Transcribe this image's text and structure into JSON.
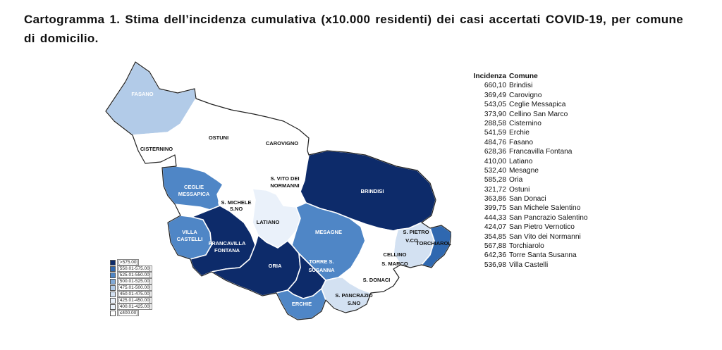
{
  "title": "Cartogramma 1. Stima dell’incidenza cumulativa (x10.000 residenti) dei casi accertati COVID-19, per comune di domicilio.",
  "palette": {
    "c0": "#ffffff",
    "c1": "#eaf1fa",
    "c2": "#d3e1f2",
    "c3": "#b2cbe8",
    "c4": "#81a9d6",
    "c5": "#4f86c6",
    "c6": "#2f68b0",
    "c7": "#0d2b6a"
  },
  "legend": [
    {
      "label": "[>575.00]",
      "class": "c7"
    },
    {
      "label": "[550.01-575.00]",
      "class": "c6"
    },
    {
      "label": "[525.01-550.00]",
      "class": "c5"
    },
    {
      "label": "[500.01-525.00]",
      "class": "c4"
    },
    {
      "label": "[475.01-500.00]",
      "class": "c3"
    },
    {
      "label": "[450.01-475.00]",
      "class": "c2"
    },
    {
      "label": "[425.01-450.00]",
      "class": "c1"
    },
    {
      "label": "[400.01-425.00]",
      "class": "c1"
    },
    {
      "label": "[≤400.00]",
      "class": "c0"
    }
  ],
  "map_labels": {
    "fasano": "FASANO",
    "cisternino": "CISTERNINO",
    "ostuni": "OSTUNI",
    "carovigno": "CAROVIGNO",
    "ceglie_1": "CEGLIE",
    "ceglie_2": "MESSAPICA",
    "svito_1": "S. VITO DEI",
    "svito_2": "NORMANNI",
    "brindisi": "BRINDISI",
    "smichele_1": "S. MICHELE",
    "smichele_2": "S.NO",
    "latiano": "LATIANO",
    "villa_1": "VILLA",
    "villa_2": "CASTELLI",
    "francavilla_1": "FRANCAVILLA",
    "francavilla_2": "FONTANA",
    "mesagne": "MESAGNE",
    "spietro_1": "S. PIETRO",
    "spietro_2": "V.CO",
    "torchiarolo": "TORCHIAROLO",
    "cellino_1": "CELLINO",
    "cellino_2": "S. MARCO",
    "oria": "ORIA",
    "torre_1": "TORRE S.",
    "torre_2": "SUSANNA",
    "sdonaci": "S. DONACI",
    "spancrazio_1": "S. PANCRAZIO",
    "spancrazio_2": "S.NO",
    "erchie": "ERCHIE"
  },
  "table": {
    "header_incidenza": "Incidenza",
    "header_comune": "Comune",
    "rows": [
      {
        "incidenza": "660,10",
        "comune": "Brindisi"
      },
      {
        "incidenza": "369,49",
        "comune": "Carovigno"
      },
      {
        "incidenza": "543,05",
        "comune": "Ceglie Messapica"
      },
      {
        "incidenza": "373,90",
        "comune": "Cellino San Marco"
      },
      {
        "incidenza": "288,58",
        "comune": "Cisternino"
      },
      {
        "incidenza": "541,59",
        "comune": "Erchie"
      },
      {
        "incidenza": "484,76",
        "comune": "Fasano"
      },
      {
        "incidenza": "628,36",
        "comune": "Francavilla Fontana"
      },
      {
        "incidenza": "410,00",
        "comune": "Latiano"
      },
      {
        "incidenza": "532,40",
        "comune": "Mesagne"
      },
      {
        "incidenza": "585,28",
        "comune": "Oria"
      },
      {
        "incidenza": "321,72",
        "comune": "Ostuni"
      },
      {
        "incidenza": "363,86",
        "comune": "San Donaci"
      },
      {
        "incidenza": "399,75",
        "comune": "San Michele Salentino"
      },
      {
        "incidenza": "444,33",
        "comune": "San Pancrazio Salentino"
      },
      {
        "incidenza": "424,07",
        "comune": "San Pietro Vernotico"
      },
      {
        "incidenza": "354,85",
        "comune": "San Vito dei Normanni"
      },
      {
        "incidenza": "567,88",
        "comune": "Torchiarolo"
      },
      {
        "incidenza": "642,36",
        "comune": "Torre Santa Susanna"
      },
      {
        "incidenza": "536,98",
        "comune": "Villa Castelli"
      }
    ]
  }
}
